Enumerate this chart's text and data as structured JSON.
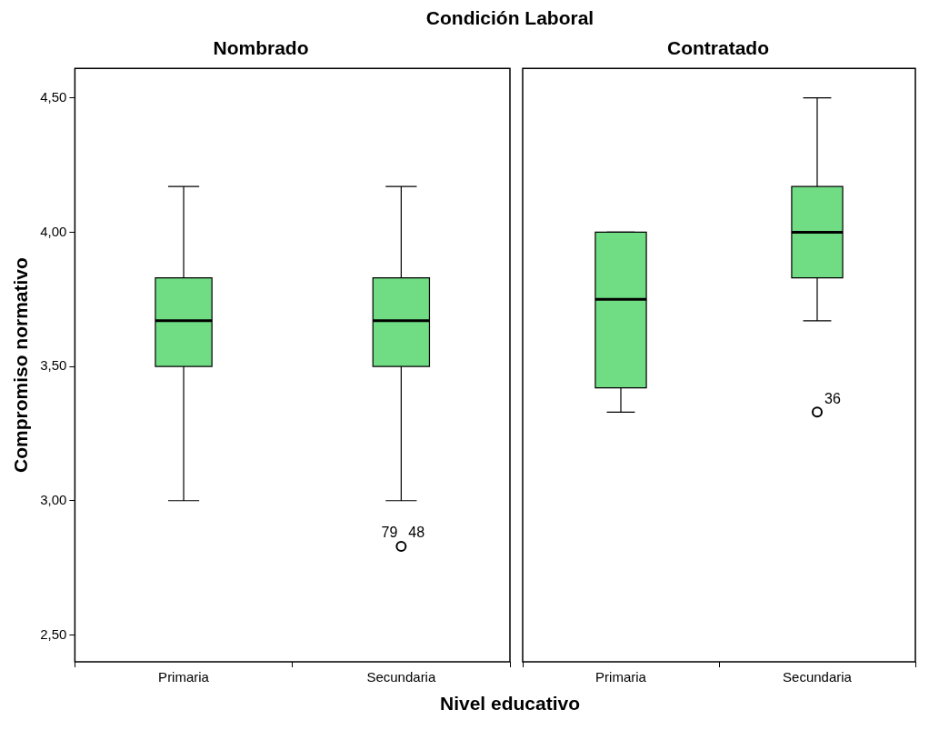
{
  "chart_data": [
    {
      "type": "box",
      "title": "Nombrado",
      "subtitle": "Condición Laboral",
      "xlabel": "Nivel educativo",
      "ylabel": "Compromiso normativo",
      "annotations": [
        "79",
        "48"
      ],
      "categories": [
        "Primaria",
        "Secundaria"
      ],
      "ylim": [
        2.4,
        4.61
      ],
      "yticks": [
        {
          "value": 2.5,
          "label": "2,50"
        },
        {
          "value": 3,
          "label": "3,00"
        },
        {
          "value": 3.5,
          "label": "3,50"
        },
        {
          "value": 4,
          "label": "4,00"
        },
        {
          "value": 4.5,
          "label": "4,50"
        }
      ],
      "series": [
        {
          "color": "#70dc84",
          "boxes": [
            {
              "low": 3.0,
              "q1": 3.5,
              "median": 3.67,
              "q3": 3.83,
              "high": 4.17
            },
            {
              "low": 3.0,
              "q1": 3.5,
              "median": 3.67,
              "q3": 3.83,
              "high": 4.17,
              "outliers": [
                2.83
              ]
            }
          ]
        }
      ]
    },
    {
      "type": "box",
      "title": "Contratado",
      "annotations": [
        "36"
      ],
      "categories": [
        "Primaria",
        "Secundaria"
      ],
      "ylim": [
        2.4,
        4.61
      ],
      "tick_labels": "x",
      "series": [
        {
          "color": "#70dc84",
          "boxes": [
            {
              "low": 3.33,
              "q1": 3.42,
              "median": 3.75,
              "q3": 4.0,
              "high": 4.0
            },
            {
              "low": 3.67,
              "q1": 3.83,
              "median": 4.0,
              "q3": 4.17,
              "high": 4.5,
              "outliers": [
                3.33
              ]
            }
          ]
        }
      ]
    }
  ]
}
